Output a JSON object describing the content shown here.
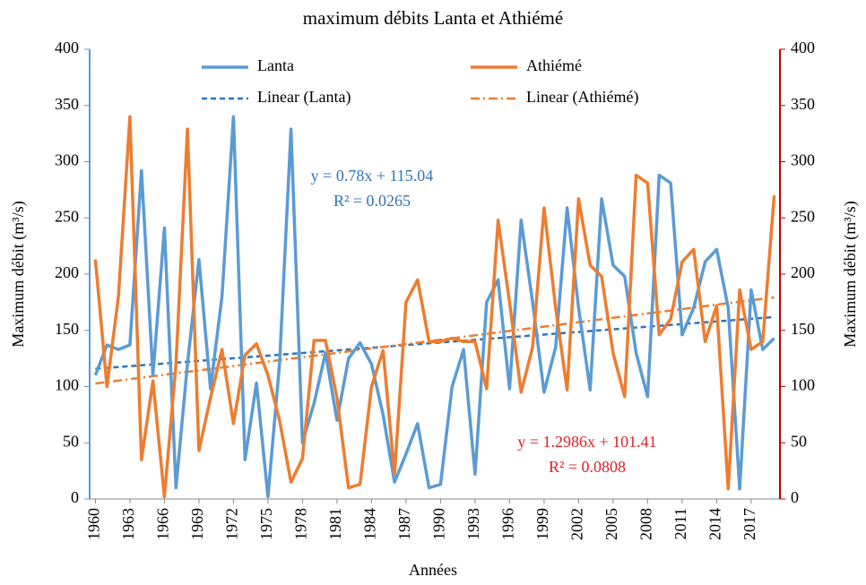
{
  "chart_data": {
    "type": "line",
    "title": "maximum débits Lanta et Athiémé",
    "xlabel": "Années",
    "ylabel": "Maximum débit (m³/s)",
    "y2label": "Maximum débit (m³/s)",
    "x": [
      1960,
      1961,
      1962,
      1963,
      1964,
      1965,
      1966,
      1967,
      1968,
      1969,
      1970,
      1971,
      1972,
      1973,
      1974,
      1975,
      1976,
      1977,
      1978,
      1979,
      1980,
      1981,
      1982,
      1983,
      1984,
      1985,
      1986,
      1987,
      1988,
      1989,
      1990,
      1991,
      1992,
      1993,
      1994,
      1995,
      1996,
      1997,
      1998,
      1999,
      2000,
      2001,
      2002,
      2003,
      2004,
      2005,
      2006,
      2007,
      2008,
      2009,
      2010,
      2011,
      2012,
      2013,
      2014,
      2015,
      2016,
      2017,
      2018,
      2019
    ],
    "series": [
      {
        "name": "Lanta",
        "color": "#5b9bd5",
        "values": [
          110,
          137,
          133,
          137,
          292,
          110,
          241,
          10,
          120,
          213,
          98,
          180,
          340,
          35,
          103,
          2,
          120,
          329,
          50,
          85,
          130,
          70,
          125,
          139,
          120,
          75,
          15,
          40,
          67,
          10,
          13,
          100,
          133,
          22,
          175,
          195,
          98,
          248,
          175,
          95,
          135,
          259,
          170,
          97,
          267,
          208,
          198,
          130,
          91,
          288,
          281,
          146,
          170,
          211,
          222,
          170,
          9,
          186,
          133,
          143
        ]
      },
      {
        "name": "Athiémé",
        "color": "#ed7d31",
        "axis": "y2",
        "values": [
          213,
          100,
          180,
          340,
          35,
          105,
          2,
          120,
          329,
          43,
          90,
          133,
          67,
          128,
          138,
          110,
          70,
          15,
          36,
          141,
          141,
          90,
          10,
          13,
          100,
          132,
          22,
          175,
          195,
          140,
          140,
          143,
          140,
          140,
          98,
          248,
          175,
          95,
          135,
          259,
          170,
          97,
          267,
          208,
          198,
          130,
          91,
          288,
          281,
          146,
          160,
          211,
          222,
          140,
          172,
          9,
          186,
          133,
          140,
          270
        ]
      }
    ],
    "trendlines": [
      {
        "name": "Linear (Lanta)",
        "color": "#2e75b6",
        "dash": "6 4",
        "slope": 0.78,
        "intercept": 115.04,
        "equation": "y = 0.78x + 115.04",
        "r2": 0.0265,
        "r2_label": "R² = 0.0265",
        "label_color": "#2e75b6"
      },
      {
        "name": "Linear (Athiémé)",
        "color": "#ed7d31",
        "dash": "10 4 2 4",
        "axis": "y2",
        "slope": 1.2986,
        "intercept": 101.41,
        "equation": "y = 1.2986x + 101.41",
        "r2": 0.0808,
        "r2_label": "R² = 0.0808",
        "label_color": "#e0202a"
      }
    ],
    "xlim": [
      1959.5,
      2019.5
    ],
    "xticks": [
      1960,
      1963,
      1966,
      1969,
      1972,
      1975,
      1978,
      1981,
      1984,
      1987,
      1990,
      1993,
      1996,
      1999,
      2002,
      2005,
      2008,
      2011,
      2014,
      2017
    ],
    "ylim": [
      0,
      400
    ],
    "yticks": [
      0,
      50,
      100,
      150,
      200,
      250,
      300,
      350,
      400
    ],
    "y2lim": [
      0,
      400
    ],
    "y2ticks": [
      0,
      50,
      100,
      150,
      200,
      250,
      300,
      350,
      400
    ],
    "y_axis_color": "#5b9bd5",
    "y2_axis_color": "#c00000"
  }
}
